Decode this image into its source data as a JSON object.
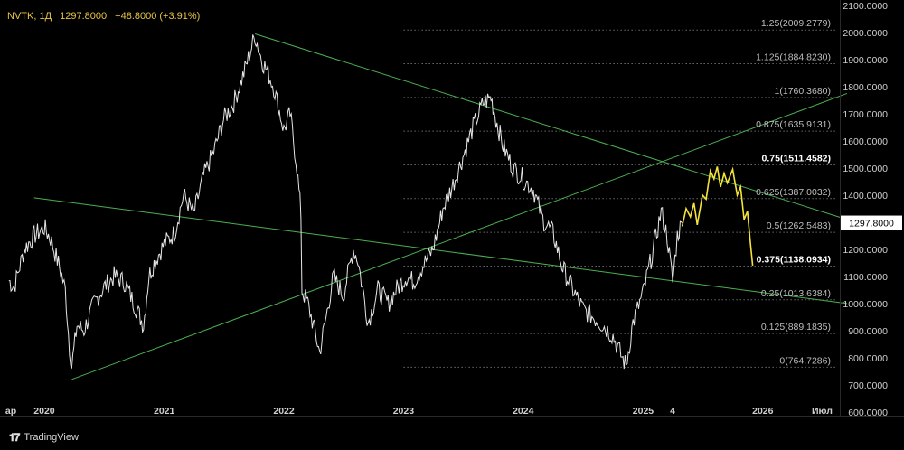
{
  "header": {
    "symbol": "NVTK, 1Д",
    "last": "1297.8000",
    "change": "+48.8000 (+3.91%)"
  },
  "brand": {
    "label": "TradingView"
  },
  "price_tag": "1297.8000",
  "colors": {
    "background": "#000000",
    "price_line": "#e6e6e6",
    "projection": "#f5e23a",
    "trend": "#4caf50",
    "fib": "#6b6b6b",
    "price_tag_bg": "#ffffff",
    "header_text": "#e8c547"
  },
  "chart_data": {
    "type": "line",
    "title": "",
    "xlabel": "",
    "ylabel": "",
    "ylim": [
      586,
      2120
    ],
    "xlim": [
      "2019-09-10",
      "2026-09-15"
    ],
    "x_tick_labels": [
      {
        "label": "ар",
        "date": "2019-09-10"
      },
      {
        "label": "2020",
        "date": "2020-01-01"
      },
      {
        "label": "2021",
        "date": "2021-01-01"
      },
      {
        "label": "2022",
        "date": "2022-01-01"
      },
      {
        "label": "2023",
        "date": "2023-01-01"
      },
      {
        "label": "2024",
        "date": "2024-01-01"
      },
      {
        "label": "2025",
        "date": "2025-01-01"
      },
      {
        "label": "4",
        "date": "2025-04-01"
      },
      {
        "label": "2026",
        "date": "2026-01-01"
      },
      {
        "label": "Июл",
        "date": "2026-07-01"
      }
    ],
    "y_tick_labels": [
      "2100.0000",
      "2000.0000",
      "1900.0000",
      "1800.0000",
      "1700.0000",
      "1600.0000",
      "1500.0000",
      "1400.0000",
      "1300.0000",
      "1200.0000",
      "1100.0000",
      "1000.0000",
      "900.0000",
      "800.0000",
      "700.0000",
      "600.0000"
    ],
    "y_ticks": [
      2100,
      2000,
      1900,
      1800,
      1700,
      1600,
      1500,
      1400,
      1300,
      1200,
      1100,
      1000,
      900,
      800,
      700,
      600
    ],
    "series": [
      {
        "kind": "price",
        "points": [
          [
            "2019-09-15",
            1085
          ],
          [
            "2019-10-01",
            1060
          ],
          [
            "2019-11-01",
            1200
          ],
          [
            "2019-12-01",
            1250
          ],
          [
            "2020-01-01",
            1280
          ],
          [
            "2020-01-20",
            1240
          ],
          [
            "2020-02-20",
            1120
          ],
          [
            "2020-03-05",
            1050
          ],
          [
            "2020-03-18",
            840
          ],
          [
            "2020-03-25",
            770
          ],
          [
            "2020-04-10",
            920
          ],
          [
            "2020-05-01",
            900
          ],
          [
            "2020-06-01",
            1000
          ],
          [
            "2020-07-01",
            1060
          ],
          [
            "2020-08-01",
            1100
          ],
          [
            "2020-09-01",
            1080
          ],
          [
            "2020-10-01",
            1000
          ],
          [
            "2020-10-30",
            920
          ],
          [
            "2020-11-15",
            1100
          ],
          [
            "2020-12-01",
            1150
          ],
          [
            "2021-01-01",
            1220
          ],
          [
            "2021-02-01",
            1260
          ],
          [
            "2021-03-01",
            1400
          ],
          [
            "2021-04-01",
            1330
          ],
          [
            "2021-05-01",
            1470
          ],
          [
            "2021-06-01",
            1560
          ],
          [
            "2021-07-01",
            1680
          ],
          [
            "2021-08-01",
            1740
          ],
          [
            "2021-09-01",
            1850
          ],
          [
            "2021-10-05",
            1990
          ],
          [
            "2021-10-25",
            1900
          ],
          [
            "2021-11-10",
            1860
          ],
          [
            "2021-12-01",
            1800
          ],
          [
            "2022-01-01",
            1640
          ],
          [
            "2022-01-20",
            1700
          ],
          [
            "2022-02-10",
            1500
          ],
          [
            "2022-02-22",
            1330
          ],
          [
            "2022-02-25",
            1050
          ],
          [
            "2022-03-15",
            1000
          ],
          [
            "2022-04-01",
            920
          ],
          [
            "2022-04-20",
            820
          ],
          [
            "2022-05-10",
            950
          ],
          [
            "2022-06-01",
            1100
          ],
          [
            "2022-07-01",
            1030
          ],
          [
            "2022-08-01",
            1200
          ],
          [
            "2022-08-15",
            1160
          ],
          [
            "2022-09-15",
            930
          ],
          [
            "2022-10-15",
            1050
          ],
          [
            "2022-11-15",
            1000
          ],
          [
            "2022-12-15",
            1060
          ],
          [
            "2023-01-10",
            1100
          ],
          [
            "2023-02-01",
            1080
          ],
          [
            "2023-03-01",
            1140
          ],
          [
            "2023-04-01",
            1200
          ],
          [
            "2023-05-01",
            1350
          ],
          [
            "2023-06-01",
            1440
          ],
          [
            "2023-07-01",
            1540
          ],
          [
            "2023-08-01",
            1650
          ],
          [
            "2023-09-01",
            1740
          ],
          [
            "2023-09-25",
            1760
          ],
          [
            "2023-10-10",
            1680
          ],
          [
            "2023-11-01",
            1580
          ],
          [
            "2023-12-01",
            1500
          ],
          [
            "2024-01-01",
            1460
          ],
          [
            "2024-02-01",
            1420
          ],
          [
            "2024-03-01",
            1310
          ],
          [
            "2024-04-01",
            1260
          ],
          [
            "2024-05-01",
            1130
          ],
          [
            "2024-06-01",
            1050
          ],
          [
            "2024-07-01",
            980
          ],
          [
            "2024-08-01",
            950
          ],
          [
            "2024-09-01",
            920
          ],
          [
            "2024-10-01",
            880
          ],
          [
            "2024-10-25",
            810
          ],
          [
            "2024-11-10",
            770
          ],
          [
            "2024-12-01",
            930
          ],
          [
            "2025-01-01",
            1040
          ],
          [
            "2025-02-01",
            1200
          ],
          [
            "2025-02-25",
            1340
          ],
          [
            "2025-03-15",
            1250
          ],
          [
            "2025-04-01",
            1080
          ],
          [
            "2025-04-15",
            1250
          ],
          [
            "2025-04-30",
            1297.8
          ]
        ]
      },
      {
        "kind": "projection",
        "points": [
          [
            "2025-04-30",
            1285
          ],
          [
            "2025-05-12",
            1350
          ],
          [
            "2025-05-25",
            1320
          ],
          [
            "2025-06-05",
            1370
          ],
          [
            "2025-06-15",
            1290
          ],
          [
            "2025-07-01",
            1400
          ],
          [
            "2025-07-12",
            1385
          ],
          [
            "2025-07-25",
            1490
          ],
          [
            "2025-08-05",
            1460
          ],
          [
            "2025-08-15",
            1505
          ],
          [
            "2025-08-25",
            1430
          ],
          [
            "2025-09-05",
            1480
          ],
          [
            "2025-09-15",
            1445
          ],
          [
            "2025-10-01",
            1495
          ],
          [
            "2025-10-15",
            1400
          ],
          [
            "2025-10-25",
            1430
          ],
          [
            "2025-11-05",
            1310
          ],
          [
            "2025-11-15",
            1340
          ],
          [
            "2025-12-01",
            1140
          ]
        ]
      }
    ],
    "trendlines": [
      {
        "from": [
          "2019-12-01",
          1390
        ],
        "to": [
          "2026-09-15",
          1000
        ]
      },
      {
        "from": [
          "2021-10-05",
          1995
        ],
        "to": [
          "2026-09-15",
          1310
        ]
      },
      {
        "from": [
          "2020-03-25",
          720
        ],
        "to": [
          "2026-09-15",
          1775
        ]
      }
    ],
    "fib_levels": [
      {
        "label": "0(764.7286)",
        "value": 764.7286,
        "bold": false
      },
      {
        "label": "0.125(889.1835)",
        "value": 889.1835,
        "bold": false
      },
      {
        "label": "0.25(1013.6384)",
        "value": 1013.6384,
        "bold": false
      },
      {
        "label": "0.375(1138.0934)",
        "value": 1138.0934,
        "bold": true
      },
      {
        "label": "0.5(1262.5483)",
        "value": 1262.5483,
        "bold": false
      },
      {
        "label": "0.625(1387.0032)",
        "value": 1387.0032,
        "bold": false
      },
      {
        "label": "0.75(1511.4582)",
        "value": 1511.4582,
        "bold": true
      },
      {
        "label": "0.875(1635.9131)",
        "value": 1635.9131,
        "bold": false
      },
      {
        "label": "1(1760.3680)",
        "value": 1760.368,
        "bold": false
      },
      {
        "label": "1.125(1884.8230)",
        "value": 1884.823,
        "bold": false
      },
      {
        "label": "1.25(2009.2779)",
        "value": 2009.2779,
        "bold": false
      }
    ],
    "fib_range": [
      "2023-01-01",
      "2026-09-15"
    ],
    "grid": false
  }
}
